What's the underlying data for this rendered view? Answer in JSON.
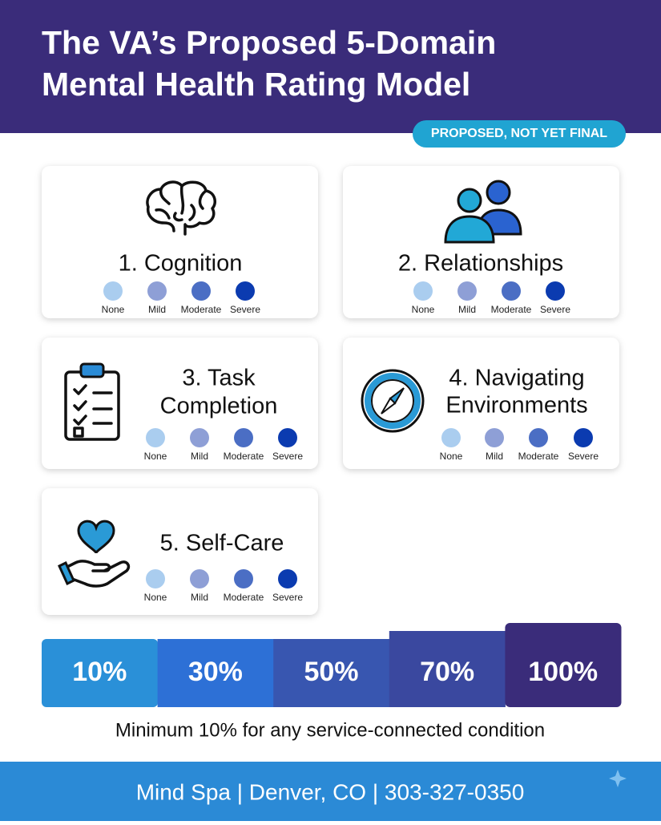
{
  "header": {
    "title_lines": [
      "The VA’s Proposed 5-Domain",
      "Mental Health Rating Model"
    ],
    "badge": "PROPOSED, NOT YET FINAL"
  },
  "severity_levels": [
    "None",
    "Mild",
    "Moderate",
    "Severe"
  ],
  "domains": [
    {
      "label_lines": [
        "1. Cognition"
      ]
    },
    {
      "label_lines": [
        "2. Relationships"
      ]
    },
    {
      "label_lines": [
        "3. Task",
        "Completion"
      ]
    },
    {
      "label_lines": [
        "4. Navigating",
        "Environments"
      ]
    },
    {
      "label_lines": [
        "5. Self-Care"
      ]
    }
  ],
  "ratings": [
    "10%",
    "30%",
    "50%",
    "70%",
    "100%"
  ],
  "note": "Minimum 10% for any service-connected condition",
  "footer": "Mind Spa | Denver, CO | 303-327-0350"
}
